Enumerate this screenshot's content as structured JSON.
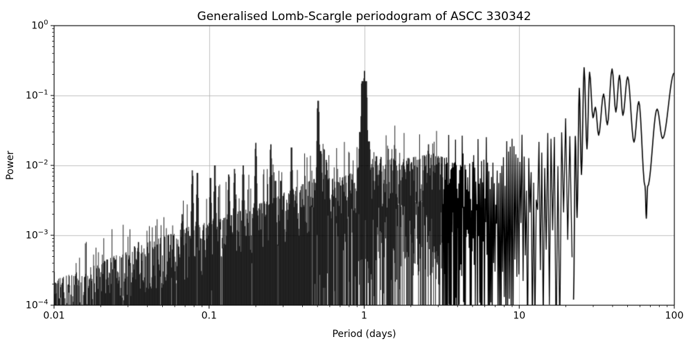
{
  "chart_data": {
    "type": "line",
    "title": "Generalised Lomb-Scargle periodogram of ASCC 330342",
    "xlabel": "Period (days)",
    "ylabel": "Power",
    "xscale": "log",
    "yscale": "log",
    "xlim": [
      0.01,
      100
    ],
    "ylim": [
      0.0001,
      1
    ],
    "grid": true,
    "grid_color": "#b0b0b0",
    "line_color": "#000000",
    "background_color": "#ffffff",
    "x_ticks": [
      {
        "value": 0.01,
        "label": "0.01"
      },
      {
        "value": 0.1,
        "label": "0.1"
      },
      {
        "value": 1,
        "label": "1"
      },
      {
        "value": 10,
        "label": "10"
      },
      {
        "value": 100,
        "label": "100"
      }
    ],
    "y_ticks": [
      {
        "value": 1,
        "base": "10",
        "exp": "0"
      },
      {
        "value": 0.1,
        "base": "10",
        "exp": "−1"
      },
      {
        "value": 0.01,
        "base": "10",
        "exp": "−2"
      },
      {
        "value": 0.001,
        "base": "10",
        "exp": "−3"
      },
      {
        "value": 0.0001,
        "base": "10",
        "exp": "−4"
      }
    ],
    "main_peaks": [
      {
        "period": 0.505,
        "power": 0.084
      },
      {
        "period": 1.0,
        "power": 0.225
      },
      {
        "period": 26.2,
        "power": 0.25
      },
      {
        "period": 28.4,
        "power": 0.215
      },
      {
        "period": 39.7,
        "power": 0.24
      },
      {
        "period": 44.3,
        "power": 0.195
      },
      {
        "period": 50.0,
        "power": 0.185
      },
      {
        "period": 100.0,
        "power": 0.21
      }
    ],
    "noise_envelope": [
      [
        0.01,
        0.00017
      ],
      [
        0.014,
        0.00022
      ],
      [
        0.02,
        0.0003
      ],
      [
        0.03,
        0.00048
      ],
      [
        0.05,
        0.0007
      ],
      [
        0.07,
        0.00095
      ],
      [
        0.1,
        0.0012
      ],
      [
        0.15,
        0.0016
      ],
      [
        0.2,
        0.002
      ],
      [
        0.3,
        0.003
      ],
      [
        0.4,
        0.004
      ],
      [
        0.5,
        0.005
      ],
      [
        0.65,
        0.0048
      ],
      [
        0.8,
        0.0055
      ],
      [
        1.0,
        0.0085
      ],
      [
        1.3,
        0.01
      ],
      [
        1.7,
        0.009
      ],
      [
        2.2,
        0.01
      ],
      [
        2.8,
        0.011
      ],
      [
        3.5,
        0.009
      ],
      [
        4.5,
        0.008
      ],
      [
        6.0,
        0.009
      ],
      [
        7.5,
        0.009
      ],
      [
        8.8,
        0.014
      ],
      [
        9.5,
        0.014
      ],
      [
        10.5,
        0.01
      ],
      [
        12.0,
        0.011
      ],
      [
        13.5,
        0.009
      ],
      [
        15.0,
        0.022
      ],
      [
        16.5,
        0.022
      ],
      [
        18.0,
        0.026
      ],
      [
        19.5,
        0.028
      ],
      [
        21.0,
        0.033
      ],
      [
        22.4,
        0.028
      ]
    ],
    "spikes": [
      [
        0.0125,
        0.00026,
        0.8,
        2.0
      ],
      [
        0.022,
        0.00045,
        0.8,
        2.0
      ],
      [
        0.035,
        0.0008,
        0.8,
        2.2
      ],
      [
        0.059,
        0.001,
        0.8,
        2.2
      ],
      [
        0.067,
        0.002,
        0.8,
        2.2
      ],
      [
        0.078,
        0.0085,
        0.8,
        1.8
      ],
      [
        0.084,
        0.0078,
        0.8,
        1.8
      ],
      [
        0.102,
        0.0066,
        0.8,
        1.9
      ],
      [
        0.109,
        0.01,
        0.8,
        1.8
      ],
      [
        0.134,
        0.0074,
        0.8,
        2.0
      ],
      [
        0.146,
        0.0089,
        0.8,
        1.9
      ],
      [
        0.166,
        0.01,
        0.8,
        1.9
      ],
      [
        0.2,
        0.021,
        0.8,
        1.8
      ],
      [
        0.25,
        0.02,
        0.8,
        1.8
      ],
      [
        0.268,
        0.006,
        0.8,
        2.2
      ],
      [
        0.29,
        0.006,
        0.8,
        2.2
      ],
      [
        0.34,
        0.018,
        0.8,
        1.8
      ],
      [
        0.505,
        0.084,
        1.2,
        1.5
      ],
      [
        0.512,
        0.016,
        3.5,
        2.6
      ],
      [
        0.57,
        0.012,
        0.8,
        2.0
      ],
      [
        0.99,
        0.03,
        6.0,
        2.4
      ],
      [
        1.0,
        0.16,
        4.0,
        1.5
      ],
      [
        1.004,
        0.225,
        0.8,
        1.3
      ],
      [
        1.045,
        0.022,
        4.0,
        2.4
      ],
      [
        1.2,
        0.0135,
        0.8,
        2.0
      ],
      [
        1.55,
        0.012,
        0.8,
        2.2
      ],
      [
        2.6,
        0.02,
        0.8,
        2.2
      ],
      [
        3.4,
        0.013,
        0.8,
        2.4
      ],
      [
        5.1,
        0.014,
        0.8,
        2.6
      ],
      [
        9.0,
        0.024,
        0.8,
        2.8
      ],
      [
        19.1,
        0.04,
        0.8,
        2.8
      ]
    ],
    "smooth_curve": [
      [
        22.4,
        0.00012
      ],
      [
        23.0,
        0.026
      ],
      [
        23.6,
        0.0018
      ],
      [
        24.4,
        0.127
      ],
      [
        25.2,
        0.0074
      ],
      [
        26.2,
        0.25
      ],
      [
        27.35,
        0.0172
      ],
      [
        28.4,
        0.215
      ],
      [
        29.9,
        0.048
      ],
      [
        31.0,
        0.068
      ],
      [
        32.5,
        0.027
      ],
      [
        35.0,
        0.105
      ],
      [
        37.0,
        0.038
      ],
      [
        39.7,
        0.24
      ],
      [
        42.0,
        0.058
      ],
      [
        44.3,
        0.195
      ],
      [
        46.6,
        0.052
      ],
      [
        50.0,
        0.185
      ],
      [
        55.0,
        0.0215
      ],
      [
        59.0,
        0.082
      ],
      [
        64.8,
        0.005
      ],
      [
        66.0,
        0.00175
      ],
      [
        67.3,
        0.005
      ],
      [
        77.5,
        0.064
      ],
      [
        84.0,
        0.0243
      ],
      [
        100.0,
        0.21
      ]
    ],
    "oscillation": {
      "cycle_df": 0.00305,
      "seed": 7,
      "dense_until_period": 3.2,
      "smooth_from_period": 22.4
    }
  }
}
